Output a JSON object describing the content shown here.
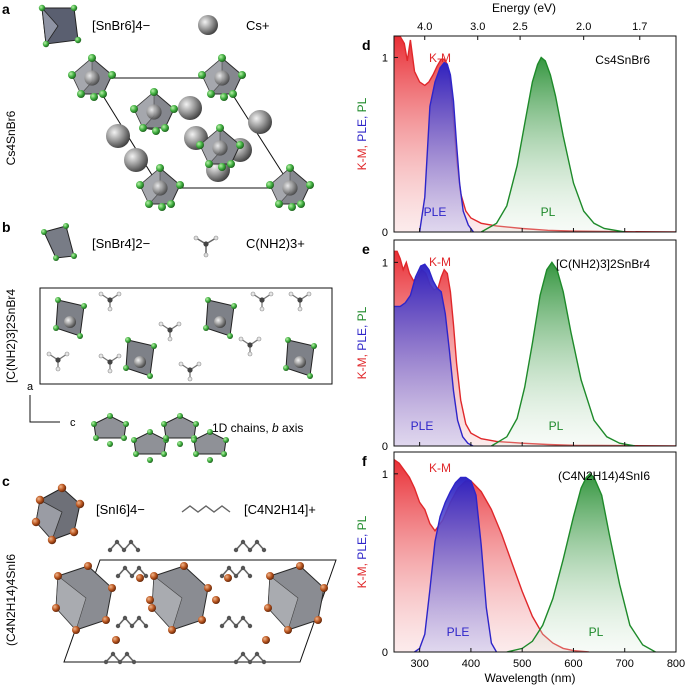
{
  "figure": {
    "structures": [
      {
        "panel_letter": "a",
        "compound_label": "Cs4SnBr6",
        "legend": [
          "[SnBr6]4−",
          "Cs+"
        ],
        "atom_colors": {
          "octahedron": "#7d7f87",
          "halide": "#3fae3f",
          "cation": "#8a8a8a"
        }
      },
      {
        "panel_letter": "b",
        "compound_label": "[C(NH2)3]2SnBr4",
        "legend": [
          "[SnBr4]2−",
          "C(NH2)3+"
        ],
        "axis_labels": {
          "vertical": "a",
          "horizontal": "c"
        },
        "note": "1D chains, b axis",
        "atom_colors": {
          "octahedron": "#8a8c90",
          "halide": "#3fae3f",
          "molecule": "#555555"
        }
      },
      {
        "panel_letter": "c",
        "compound_label": "(C4N2H14)4SnI6",
        "legend": [
          "[SnI6]4−",
          "[C4N2H14]+"
        ],
        "atom_colors": {
          "octahedron": "#8a8c90",
          "halide": "#b8541e",
          "molecule": "#555555"
        }
      }
    ],
    "spectra_shared": {
      "top_axis_title": "Energy (eV)",
      "top_axis_ticks": [
        "4.0",
        "3.0",
        "2.5",
        "2.0",
        "1.7"
      ],
      "xlabel": "Wavelength (nm)",
      "ylabel_parts": [
        "K-M",
        "PLE",
        "PL"
      ],
      "colors": {
        "km": "#e0282b",
        "ple": "#2e25c9",
        "pl": "#1e8a2a"
      }
    }
  },
  "chart_data": [
    {
      "type": "area",
      "panel_letter": "d",
      "compound_label": "Cs4SnBr6",
      "xlim": [
        250,
        800
      ],
      "ylim": [
        0,
        1.1
      ],
      "x_ticks": [],
      "y_ticks": [
        "0",
        "1"
      ],
      "series": [
        {
          "name": "K-M",
          "x": [
            250,
            262,
            270,
            276,
            282,
            290,
            300,
            310,
            318,
            326,
            334,
            342,
            348,
            354,
            360,
            366,
            372,
            380,
            390,
            400,
            420,
            450,
            500,
            550,
            600,
            700,
            800
          ],
          "values": [
            1.12,
            1.12,
            1.08,
            0.98,
            1.1,
            0.92,
            0.86,
            0.84,
            0.86,
            0.9,
            0.95,
            0.99,
            0.99,
            0.96,
            0.85,
            0.65,
            0.42,
            0.22,
            0.12,
            0.08,
            0.05,
            0.035,
            0.02,
            0.01,
            0.005,
            0.002,
            0.0
          ]
        },
        {
          "name": "PLE",
          "x": [
            300,
            310,
            320,
            330,
            340,
            348,
            354,
            360,
            366,
            372,
            378,
            385,
            395,
            405
          ],
          "values": [
            0.0,
            0.2,
            0.72,
            0.86,
            0.94,
            0.97,
            0.96,
            0.9,
            0.75,
            0.5,
            0.28,
            0.12,
            0.04,
            0.0
          ]
        },
        {
          "name": "PL",
          "x": [
            420,
            450,
            470,
            490,
            505,
            520,
            530,
            537,
            545,
            555,
            565,
            580,
            600,
            620,
            640,
            660,
            700
          ],
          "values": [
            0.0,
            0.05,
            0.15,
            0.38,
            0.62,
            0.86,
            0.96,
            1.0,
            0.98,
            0.9,
            0.78,
            0.55,
            0.28,
            0.12,
            0.05,
            0.02,
            0.0
          ]
        }
      ],
      "annotations": [
        "K-M",
        "PLE",
        "PL"
      ]
    },
    {
      "type": "area",
      "panel_letter": "e",
      "compound_label": "[C(NH2)3]2SnBr4",
      "xlim": [
        250,
        800
      ],
      "ylim": [
        0,
        1.1
      ],
      "x_ticks": [],
      "y_ticks": [
        "0",
        "1"
      ],
      "series": [
        {
          "name": "K-M",
          "x": [
            250,
            256,
            262,
            268,
            274,
            280,
            288,
            296,
            304,
            312,
            320,
            328,
            336,
            342,
            348,
            354,
            360,
            366,
            372,
            380,
            390,
            400,
            420,
            450,
            500,
            550,
            600,
            700,
            800
          ],
          "values": [
            1.06,
            1.06,
            1.02,
            0.96,
            1.0,
            0.94,
            0.9,
            0.92,
            0.96,
            0.94,
            0.88,
            0.85,
            0.86,
            0.92,
            0.96,
            0.94,
            0.84,
            0.66,
            0.45,
            0.25,
            0.12,
            0.07,
            0.04,
            0.025,
            0.015,
            0.008,
            0.004,
            0.002,
            0.0
          ]
        },
        {
          "name": "PLE",
          "x": [
            250,
            262,
            272,
            282,
            292,
            302,
            310,
            318,
            326,
            334,
            342,
            350,
            358,
            366,
            374,
            384,
            394,
            404
          ],
          "values": [
            0.76,
            0.76,
            0.78,
            0.82,
            0.92,
            0.98,
            0.99,
            0.96,
            0.9,
            0.86,
            0.84,
            0.72,
            0.52,
            0.3,
            0.14,
            0.05,
            0.015,
            0.0
          ]
        },
        {
          "name": "PL",
          "x": [
            440,
            470,
            490,
            505,
            520,
            535,
            548,
            558,
            568,
            580,
            595,
            615,
            640,
            665,
            690,
            720
          ],
          "values": [
            0.0,
            0.05,
            0.15,
            0.32,
            0.56,
            0.82,
            0.96,
            1.0,
            0.96,
            0.84,
            0.62,
            0.36,
            0.14,
            0.05,
            0.015,
            0.0
          ]
        }
      ],
      "annotations": [
        "K-M",
        "PLE",
        "PL"
      ]
    },
    {
      "type": "area",
      "panel_letter": "f",
      "compound_label": "(C4N2H14)4SnI6",
      "xlim": [
        250,
        800
      ],
      "ylim": [
        0,
        1.1
      ],
      "x_ticks": [
        "300",
        "400",
        "500",
        "600",
        "700",
        "800"
      ],
      "y_ticks": [
        "0",
        "1"
      ],
      "series": [
        {
          "name": "K-M",
          "x": [
            250,
            260,
            270,
            280,
            290,
            300,
            310,
            320,
            330,
            345,
            360,
            375,
            390,
            400,
            420,
            440,
            460,
            480,
            500,
            520,
            540,
            560,
            580,
            600,
            630
          ],
          "values": [
            1.08,
            1.06,
            1.02,
            0.98,
            0.92,
            0.84,
            0.8,
            0.72,
            0.68,
            0.74,
            0.84,
            0.92,
            0.96,
            0.96,
            0.9,
            0.8,
            0.66,
            0.5,
            0.34,
            0.2,
            0.1,
            0.05,
            0.02,
            0.008,
            0.0
          ]
        },
        {
          "name": "PLE",
          "x": [
            290,
            300,
            310,
            320,
            330,
            340,
            350,
            360,
            370,
            380,
            390,
            400,
            410,
            420,
            430,
            440,
            450
          ],
          "values": [
            0.0,
            0.02,
            0.1,
            0.35,
            0.62,
            0.76,
            0.84,
            0.9,
            0.95,
            0.98,
            0.98,
            0.96,
            0.88,
            0.6,
            0.25,
            0.05,
            0.0
          ]
        },
        {
          "name": "PL",
          "x": [
            470,
            500,
            520,
            540,
            560,
            580,
            600,
            615,
            625,
            632,
            640,
            655,
            670,
            690,
            710,
            735,
            760
          ],
          "values": [
            0.0,
            0.02,
            0.06,
            0.15,
            0.3,
            0.52,
            0.76,
            0.92,
            0.98,
            1.0,
            0.98,
            0.88,
            0.66,
            0.38,
            0.15,
            0.04,
            0.0
          ]
        }
      ],
      "annotations": [
        "K-M",
        "PLE",
        "PL"
      ]
    }
  ]
}
